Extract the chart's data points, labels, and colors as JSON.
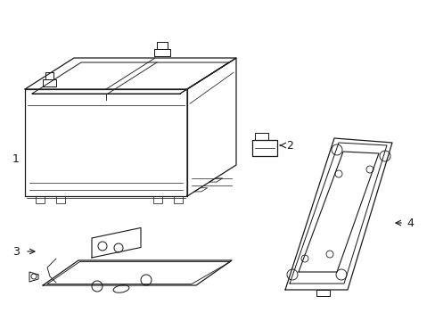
{
  "background_color": "#ffffff",
  "line_color": "#1a1a1a",
  "line_width": 0.9,
  "label_fontsize": 9,
  "fig_w": 4.89,
  "fig_h": 3.6,
  "dpi": 100
}
